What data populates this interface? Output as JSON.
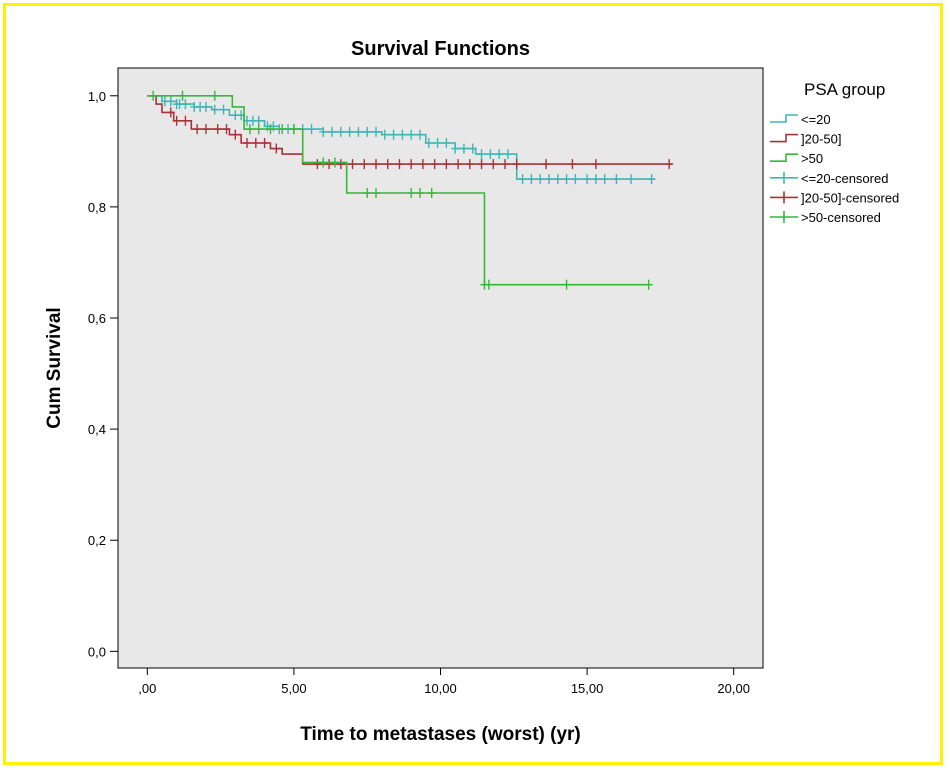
{
  "frame_color": "#fff200",
  "chart_data": {
    "type": "line",
    "step": true,
    "title": "Survival Functions",
    "xlabel": "Time to metastases (worst) (yr)",
    "ylabel": "Cum Survival",
    "xlim": [
      -1.0,
      21.0
    ],
    "ylim": [
      -0.03,
      1.05
    ],
    "xticks": [
      0,
      5,
      10,
      15,
      20
    ],
    "xtick_labels": [
      ",00",
      "5,00",
      "10,00",
      "15,00",
      "20,00"
    ],
    "yticks": [
      0,
      0.2,
      0.4,
      0.6,
      0.8,
      1.0
    ],
    "ytick_labels": [
      "0,0",
      "0,2",
      "0,4",
      "0,6",
      "0,8",
      "1,0"
    ],
    "plot_background": "#e8e8e8",
    "grid": false,
    "legend_title": "PSA group",
    "legend_position": "right",
    "legend_entries": [
      {
        "label": "<=20",
        "color": "#3fb6b6",
        "kind": "line"
      },
      {
        "label": "]20-50]",
        "color": "#a8323a",
        "kind": "line"
      },
      {
        "label": ">50",
        "color": "#36b83a",
        "kind": "line"
      },
      {
        "label": "<=20-censored",
        "color": "#3fb6b6",
        "kind": "censor"
      },
      {
        "label": "]20-50]-censored",
        "color": "#a8323a",
        "kind": "censor"
      },
      {
        "label": ">50-censored",
        "color": "#36b83a",
        "kind": "censor"
      }
    ],
    "series": [
      {
        "name": "<=20",
        "color": "#3fb6b6",
        "x": [
          0,
          0.5,
          1.0,
          1.6,
          2.2,
          2.8,
          3.3,
          4.0,
          4.5,
          6.0,
          8.0,
          9.5,
          10.5,
          11.2,
          12.6,
          17.3
        ],
        "y": [
          1.0,
          0.99,
          0.985,
          0.98,
          0.975,
          0.965,
          0.955,
          0.945,
          0.94,
          0.935,
          0.93,
          0.915,
          0.905,
          0.895,
          0.85,
          0.85
        ],
        "censored_x": [
          0.6,
          0.8,
          1.0,
          1.1,
          1.3,
          1.6,
          1.8,
          2.0,
          2.3,
          2.6,
          3.0,
          3.2,
          3.4,
          3.6,
          3.8,
          4.1,
          4.3,
          4.5,
          4.8,
          5.0,
          5.3,
          5.6,
          6.0,
          6.3,
          6.6,
          6.9,
          7.2,
          7.5,
          7.8,
          8.1,
          8.4,
          8.7,
          9.0,
          9.3,
          9.6,
          9.9,
          10.2,
          10.5,
          10.8,
          11.1,
          11.4,
          11.7,
          12.0,
          12.3,
          12.8,
          13.1,
          13.4,
          13.7,
          14.0,
          14.3,
          14.6,
          15.0,
          15.3,
          15.6,
          16.0,
          16.5,
          17.2
        ]
      },
      {
        "name": "]20-50]",
        "color": "#a8323a",
        "x": [
          0,
          0.3,
          0.5,
          0.9,
          1.5,
          2.8,
          3.2,
          4.2,
          4.6,
          5.3,
          17.9
        ],
        "y": [
          1.0,
          0.985,
          0.97,
          0.955,
          0.94,
          0.93,
          0.915,
          0.905,
          0.895,
          0.877,
          0.877
        ],
        "censored_x": [
          0.8,
          1.0,
          1.3,
          1.7,
          2.0,
          2.4,
          2.7,
          3.0,
          3.4,
          3.7,
          4.0,
          4.4,
          5.8,
          6.2,
          6.6,
          7.0,
          7.4,
          7.8,
          8.2,
          8.6,
          9.0,
          9.4,
          9.8,
          10.2,
          10.6,
          11.0,
          11.4,
          11.8,
          12.2,
          12.6,
          13.6,
          14.5,
          15.3,
          17.8
        ]
      },
      {
        "name": ">50",
        "color": "#36b83a",
        "x": [
          0,
          2.9,
          3.3,
          5.3,
          6.8,
          11.5,
          17.1
        ],
        "y": [
          1.0,
          0.98,
          0.94,
          0.88,
          0.825,
          0.66,
          0.66
        ],
        "censored_x": [
          0.2,
          1.2,
          2.3,
          3.5,
          3.8,
          4.2,
          4.6,
          5.0,
          6.0,
          6.4,
          7.5,
          7.8,
          9.0,
          9.3,
          9.7,
          11.5,
          11.65,
          14.3,
          17.1
        ]
      }
    ]
  }
}
